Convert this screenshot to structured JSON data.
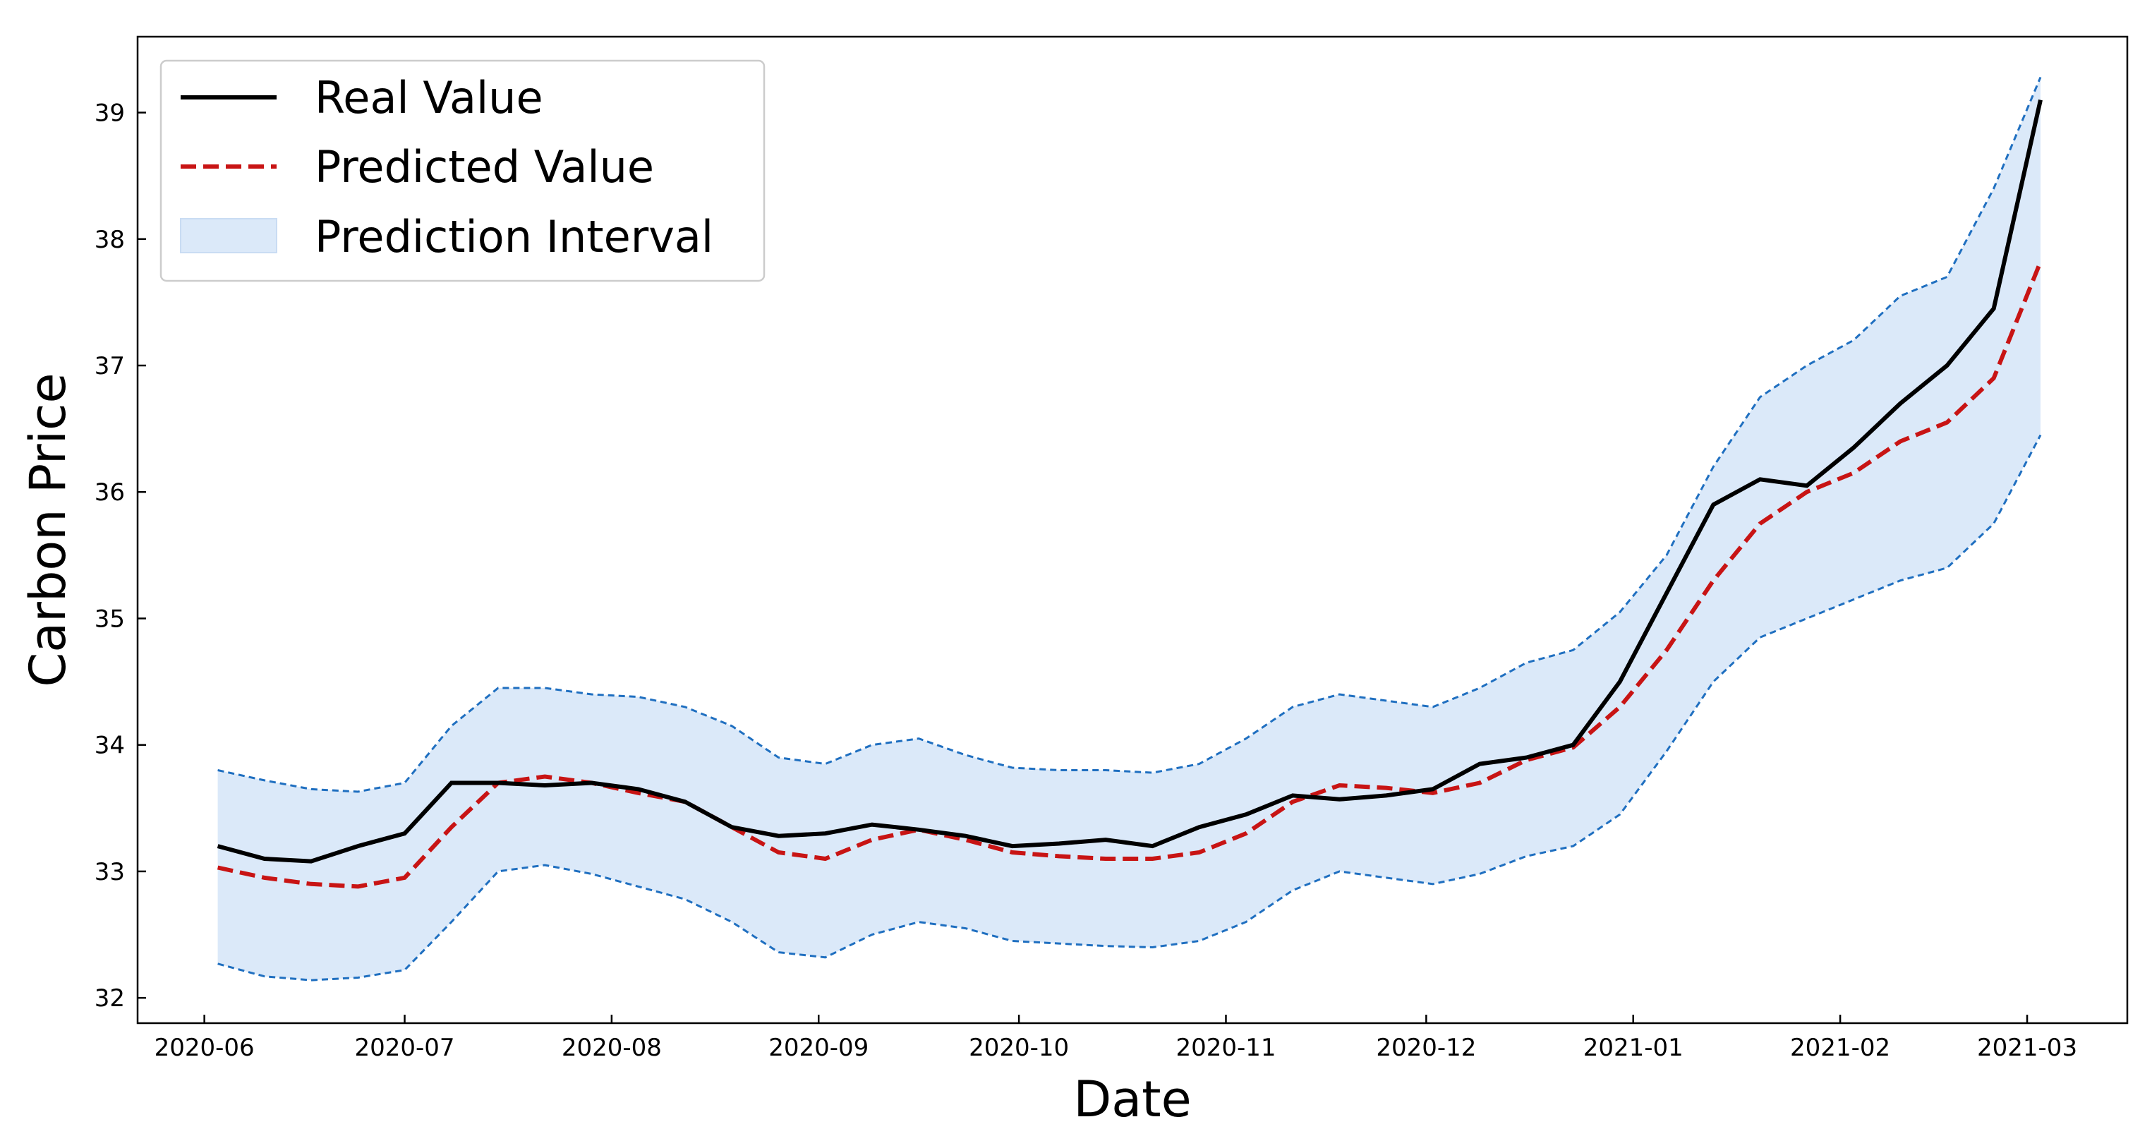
{
  "chart_data": {
    "type": "line",
    "title": "",
    "xlabel": "Date",
    "ylabel": "Carbon Price",
    "xlim": [
      "2020-05-22",
      "2021-03-16"
    ],
    "ylim": [
      31.8,
      39.6
    ],
    "x_ticks": [
      "2020-06",
      "2020-07",
      "2020-08",
      "2020-09",
      "2020-10",
      "2020-11",
      "2020-12",
      "2021-01",
      "2021-02",
      "2021-03"
    ],
    "y_ticks": [
      32,
      33,
      34,
      35,
      36,
      37,
      38,
      39
    ],
    "grid": false,
    "legend_position": "top-left",
    "legend": [
      "Real Value",
      "Predicted Value",
      "Prediction Interval"
    ],
    "colors": {
      "real": "#000000",
      "predicted": "#c81414",
      "interval_fill": "#dbe9f9",
      "interval_edge": "#1f6fc0"
    },
    "dates": [
      "2020-06-03",
      "2020-06-10",
      "2020-06-17",
      "2020-06-24",
      "2020-07-01",
      "2020-07-08",
      "2020-07-15",
      "2020-07-22",
      "2020-07-29",
      "2020-08-05",
      "2020-08-12",
      "2020-08-19",
      "2020-08-26",
      "2020-09-02",
      "2020-09-09",
      "2020-09-16",
      "2020-09-23",
      "2020-09-30",
      "2020-10-07",
      "2020-10-14",
      "2020-10-21",
      "2020-10-28",
      "2020-11-04",
      "2020-11-11",
      "2020-11-18",
      "2020-11-25",
      "2020-12-02",
      "2020-12-09",
      "2020-12-16",
      "2020-12-23",
      "2020-12-30",
      "2021-01-06",
      "2021-01-13",
      "2021-01-20",
      "2021-01-27",
      "2021-02-03",
      "2021-02-10",
      "2021-02-17",
      "2021-02-24",
      "2021-03-03"
    ],
    "series": [
      {
        "name": "Real Value",
        "values": [
          33.2,
          33.1,
          33.08,
          33.2,
          33.3,
          33.7,
          33.7,
          33.68,
          33.7,
          33.65,
          33.55,
          33.35,
          33.28,
          33.3,
          33.37,
          33.33,
          33.28,
          33.2,
          33.22,
          33.25,
          33.2,
          33.35,
          33.45,
          33.6,
          33.57,
          33.6,
          33.65,
          33.85,
          33.9,
          34.0,
          34.5,
          35.2,
          35.9,
          36.1,
          36.05,
          36.35,
          36.7,
          37.0,
          37.45,
          39.1
        ]
      },
      {
        "name": "Predicted Value",
        "values": [
          33.03,
          32.95,
          32.9,
          32.88,
          32.95,
          33.35,
          33.7,
          33.75,
          33.7,
          33.62,
          33.55,
          33.35,
          33.15,
          33.1,
          33.25,
          33.33,
          33.25,
          33.15,
          33.12,
          33.1,
          33.1,
          33.15,
          33.3,
          33.55,
          33.68,
          33.66,
          33.62,
          33.7,
          33.88,
          33.98,
          34.3,
          34.75,
          35.3,
          35.75,
          36.0,
          36.15,
          36.4,
          36.55,
          36.9,
          37.82
        ]
      },
      {
        "name": "Prediction Interval Upper",
        "values": [
          33.8,
          33.72,
          33.65,
          33.63,
          33.7,
          34.15,
          34.45,
          34.45,
          34.4,
          34.38,
          34.3,
          34.15,
          33.9,
          33.85,
          34.0,
          34.05,
          33.92,
          33.82,
          33.8,
          33.8,
          33.78,
          33.85,
          34.05,
          34.3,
          34.4,
          34.35,
          34.3,
          34.45,
          34.65,
          34.75,
          35.05,
          35.5,
          36.2,
          36.75,
          37.0,
          37.2,
          37.55,
          37.7,
          38.4,
          39.28
        ]
      },
      {
        "name": "Prediction Interval Lower",
        "values": [
          32.27,
          32.17,
          32.14,
          32.16,
          32.22,
          32.6,
          33.0,
          33.05,
          32.98,
          32.88,
          32.78,
          32.6,
          32.36,
          32.32,
          32.5,
          32.6,
          32.55,
          32.45,
          32.43,
          32.41,
          32.4,
          32.45,
          32.6,
          32.85,
          33.0,
          32.95,
          32.9,
          32.98,
          33.12,
          33.2,
          33.45,
          33.95,
          34.5,
          34.85,
          35.0,
          35.15,
          35.3,
          35.4,
          35.75,
          36.45
        ]
      }
    ]
  }
}
